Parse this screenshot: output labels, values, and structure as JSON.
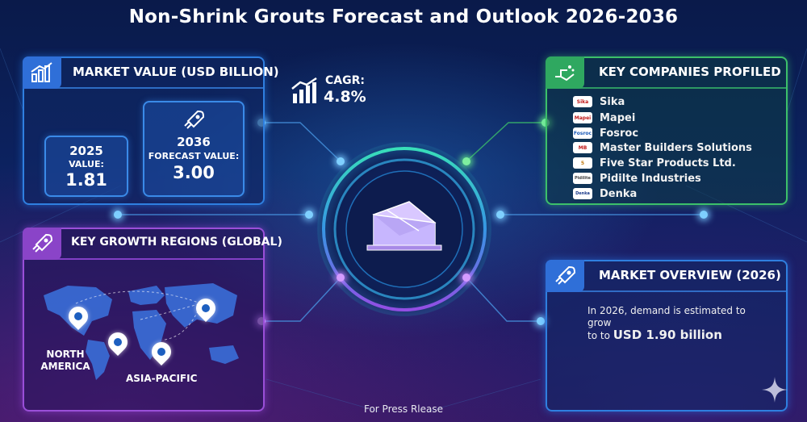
{
  "title": "Non-Shrink Grouts Forecast and Outlook 2026-2036",
  "market_value": {
    "heading": "MARKET VALUE (USD BILLION)",
    "icon": "bar-chart-icon",
    "year_2025": "2025",
    "label_2025": "VALUE:",
    "value_2025": "1.81",
    "year_2036": "2036",
    "label_2036": "FORECAST VALUE:",
    "value_2036": "3.00",
    "rocket_icon": "rocket-icon"
  },
  "cagr": {
    "label": "CAGR:",
    "value": "4.8%",
    "icon": "growth-chart-icon"
  },
  "key_companies": {
    "heading": "KEY COMPANIES PROFILED",
    "icon": "handshake-icon",
    "items": [
      {
        "name": "Sika",
        "logo": "Sika"
      },
      {
        "name": "Mapei",
        "logo": "Mapei"
      },
      {
        "name": "Fosroc",
        "logo": "Fosroc"
      },
      {
        "name": "Master Builders Solutions",
        "logo": "MB"
      },
      {
        "name": "Five Star Products Ltd.",
        "logo": "5"
      },
      {
        "name": "Pidilte Industries",
        "logo": "Pidilite"
      },
      {
        "name": "Denka",
        "logo": "Denka"
      }
    ]
  },
  "growth_regions": {
    "heading": "KEY GROWTH REGIONS (GLOBAL)",
    "icon": "rocket-icon",
    "regions": [
      "NORTH",
      "AMERICA",
      "ASIA-PACIFIC"
    ]
  },
  "market_overview": {
    "heading": "MARKET OVERVIEW (2026)",
    "icon": "rocket-icon",
    "line1": "In 2026, demand is estimated to",
    "line2": "grow",
    "line3_prefix": "to to ",
    "line3_value": "USD 1.90 billion"
  },
  "footer": "For Press Rlease",
  "center_icon": "grout-tray-icon",
  "colors": {
    "blue_accent": "#2f7fe0",
    "green_accent": "#3cc06a",
    "purple_accent": "#9a4fd8"
  }
}
